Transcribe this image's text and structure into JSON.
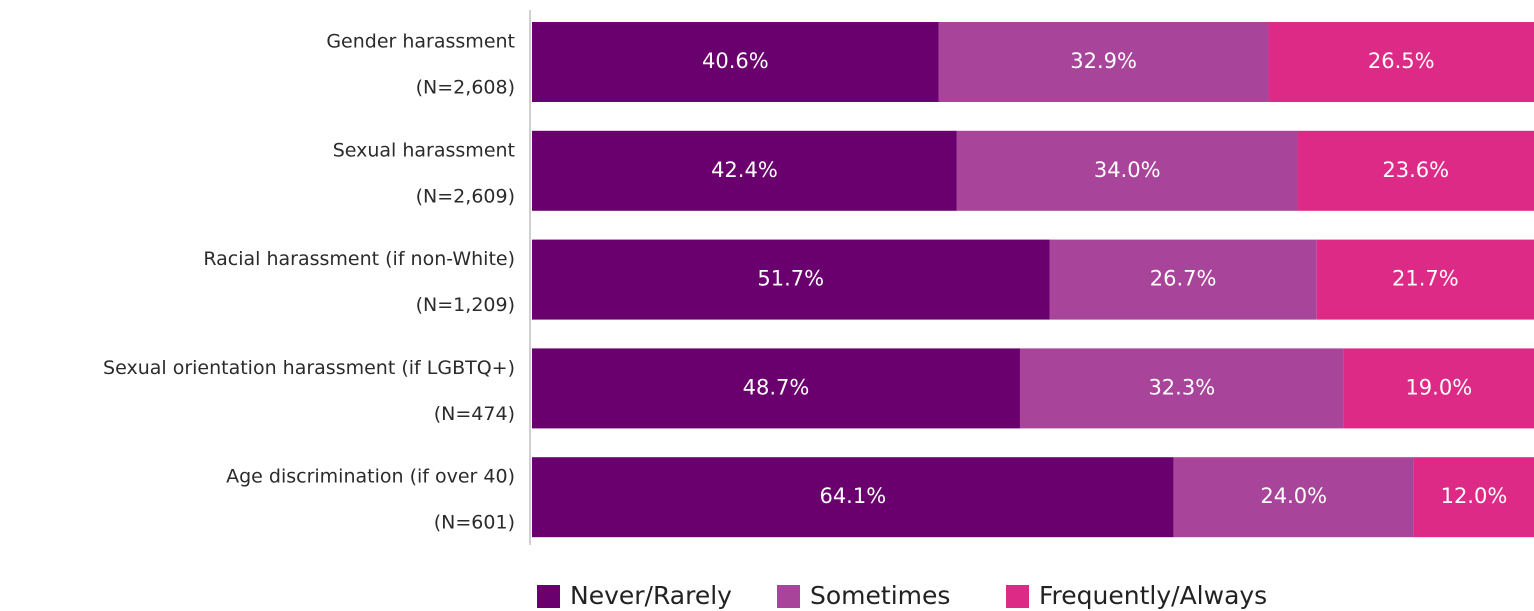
{
  "chart_data": {
    "type": "stacked_bar_horizontal",
    "categories": [
      "Gender harassment",
      "Sexual harassment",
      "Racial harassment (if non-White)",
      "Sexual orientation harassment (if LGBTQ+)",
      "Age discrimination (if over 40)"
    ],
    "sample_sizes": [
      "(N=2,608)",
      "(N=2,609)",
      "(N=1,209)",
      "(N=474)",
      "(N=601)"
    ],
    "series": [
      {
        "name": "Never/Rarely",
        "color": "#6a006e",
        "values": [
          40.6,
          42.4,
          51.7,
          48.7,
          64.1
        ],
        "value_labels": [
          "40.6%",
          "42.4%",
          "51.7%",
          "48.7%",
          "64.1%"
        ]
      },
      {
        "name": "Sometimes",
        "color": "#a8449a",
        "values": [
          32.9,
          34.0,
          26.7,
          32.3,
          24.0
        ],
        "value_labels": [
          "32.9%",
          "34.0%",
          "26.7%",
          "32.3%",
          "24.0%"
        ]
      },
      {
        "name": "Frequently/Always",
        "color": "#de2a87",
        "values": [
          26.5,
          23.6,
          21.7,
          19.0,
          12.0
        ],
        "value_labels": [
          "26.5%",
          "23.6%",
          "21.7%",
          "19.0%",
          "12.0%"
        ]
      }
    ],
    "legend": "bottom"
  }
}
